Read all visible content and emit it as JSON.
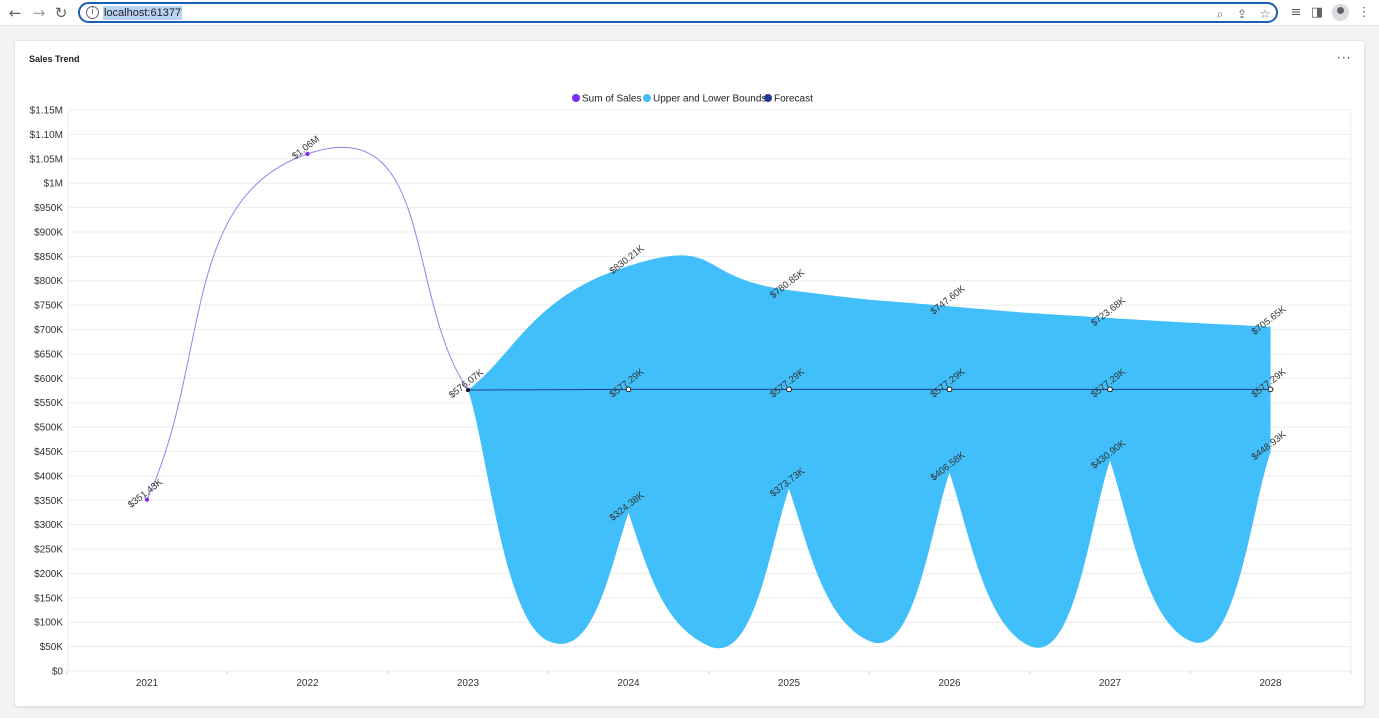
{
  "browser": {
    "url": "localhost:61377",
    "icons": [
      "back-icon",
      "forward-icon",
      "reload-icon",
      "info-icon",
      "zoom-icon",
      "share-icon",
      "bookmark-star-icon",
      "reading-list-icon",
      "side-panel-icon",
      "profile-avatar-icon",
      "browser-menu-icon"
    ]
  },
  "card": {
    "title": "Sales Trend",
    "menu_label": "···"
  },
  "chart_data": {
    "type": "line",
    "title": "Sales Trend",
    "categories": [
      "2021",
      "2022",
      "2023",
      "2024",
      "2025",
      "2026",
      "2027",
      "2028"
    ],
    "ylim": [
      0,
      1150000
    ],
    "y_ticks": [
      "$0",
      "$50K",
      "$100K",
      "$150K",
      "$200K",
      "$250K",
      "$300K",
      "$350K",
      "$400K",
      "$450K",
      "$500K",
      "$550K",
      "$600K",
      "$650K",
      "$700K",
      "$750K",
      "$800K",
      "$850K",
      "$900K",
      "$950K",
      "$1M",
      "$1.05M",
      "$1.10M",
      "$1.15M"
    ],
    "legend": [
      "Sum of Sales",
      "Upper and Lower Bounds",
      "Forecast"
    ],
    "legend_position": "top-center",
    "grid": true,
    "colors": {
      "sales": "#7b2ff7",
      "sales_line": "#a07cf0",
      "bounds": "#41bffa",
      "forecast": "#1f3c88"
    },
    "series": [
      {
        "name": "Sum of Sales",
        "x": [
          "2021",
          "2022",
          "2023"
        ],
        "values": [
          351430,
          1060000,
          576070
        ],
        "labels": [
          "$351.43K",
          "$1.06M",
          "$576.07K"
        ]
      },
      {
        "name": "Forecast",
        "x": [
          "2023",
          "2024",
          "2025",
          "2026",
          "2027",
          "2028"
        ],
        "values": [
          576070,
          577290,
          577290,
          577290,
          577290,
          577290
        ],
        "labels": [
          "",
          "$577.29K",
          "$577.29K",
          "$577.29K",
          "$577.29K",
          "$577.29K"
        ]
      },
      {
        "name": "Upper Bound",
        "x": [
          "2023",
          "2024",
          "2025",
          "2026",
          "2027",
          "2028"
        ],
        "values": [
          576070,
          830210,
          780850,
          747600,
          723680,
          705650
        ],
        "labels": [
          "",
          "$830.21K",
          "$780.85K",
          "$747.60K",
          "$723.68K",
          "$705.65K"
        ]
      },
      {
        "name": "Lower Bound",
        "x": [
          "2023",
          "2024",
          "2025",
          "2026",
          "2027",
          "2028"
        ],
        "values": [
          576070,
          324380,
          373730,
          406580,
          430900,
          448930
        ],
        "labels": [
          "",
          "$324.38K",
          "$373.73K",
          "$406.58K",
          "$430.90K",
          "$448.93K"
        ]
      }
    ]
  }
}
